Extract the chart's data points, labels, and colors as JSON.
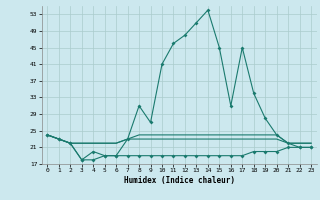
{
  "xlabel": "Humidex (Indice chaleur)",
  "background_color": "#cce8ee",
  "grid_color": "#aacccc",
  "line_color": "#1a7a6e",
  "x": [
    0,
    1,
    2,
    3,
    4,
    5,
    6,
    7,
    8,
    9,
    10,
    11,
    12,
    13,
    14,
    15,
    16,
    17,
    18,
    19,
    20,
    21,
    22,
    23
  ],
  "line_main": [
    24,
    23,
    22,
    18,
    20,
    19,
    19,
    23,
    31,
    27,
    41,
    46,
    48,
    51,
    54,
    45,
    31,
    45,
    34,
    28,
    24,
    22,
    21,
    21
  ],
  "line_flat1": [
    24,
    23,
    22,
    22,
    22,
    22,
    22,
    23,
    23,
    23,
    23,
    23,
    23,
    23,
    23,
    23,
    23,
    23,
    23,
    23,
    23,
    22,
    22,
    22
  ],
  "line_flat2": [
    24,
    23,
    22,
    22,
    22,
    22,
    22,
    23,
    24,
    24,
    24,
    24,
    24,
    24,
    24,
    24,
    24,
    24,
    24,
    24,
    24,
    22,
    22,
    22
  ],
  "line_bot": [
    24,
    23,
    22,
    18,
    18,
    19,
    19,
    19,
    19,
    19,
    19,
    19,
    19,
    19,
    19,
    19,
    19,
    19,
    20,
    20,
    20,
    21,
    21,
    21
  ],
  "ylim": [
    17,
    55
  ],
  "yticks": [
    17,
    21,
    25,
    29,
    33,
    37,
    41,
    45,
    49,
    53
  ],
  "xlim": [
    -0.5,
    23.5
  ],
  "xticks": [
    0,
    1,
    2,
    3,
    4,
    5,
    6,
    7,
    8,
    9,
    10,
    11,
    12,
    13,
    14,
    15,
    16,
    17,
    18,
    19,
    20,
    21,
    22,
    23
  ]
}
